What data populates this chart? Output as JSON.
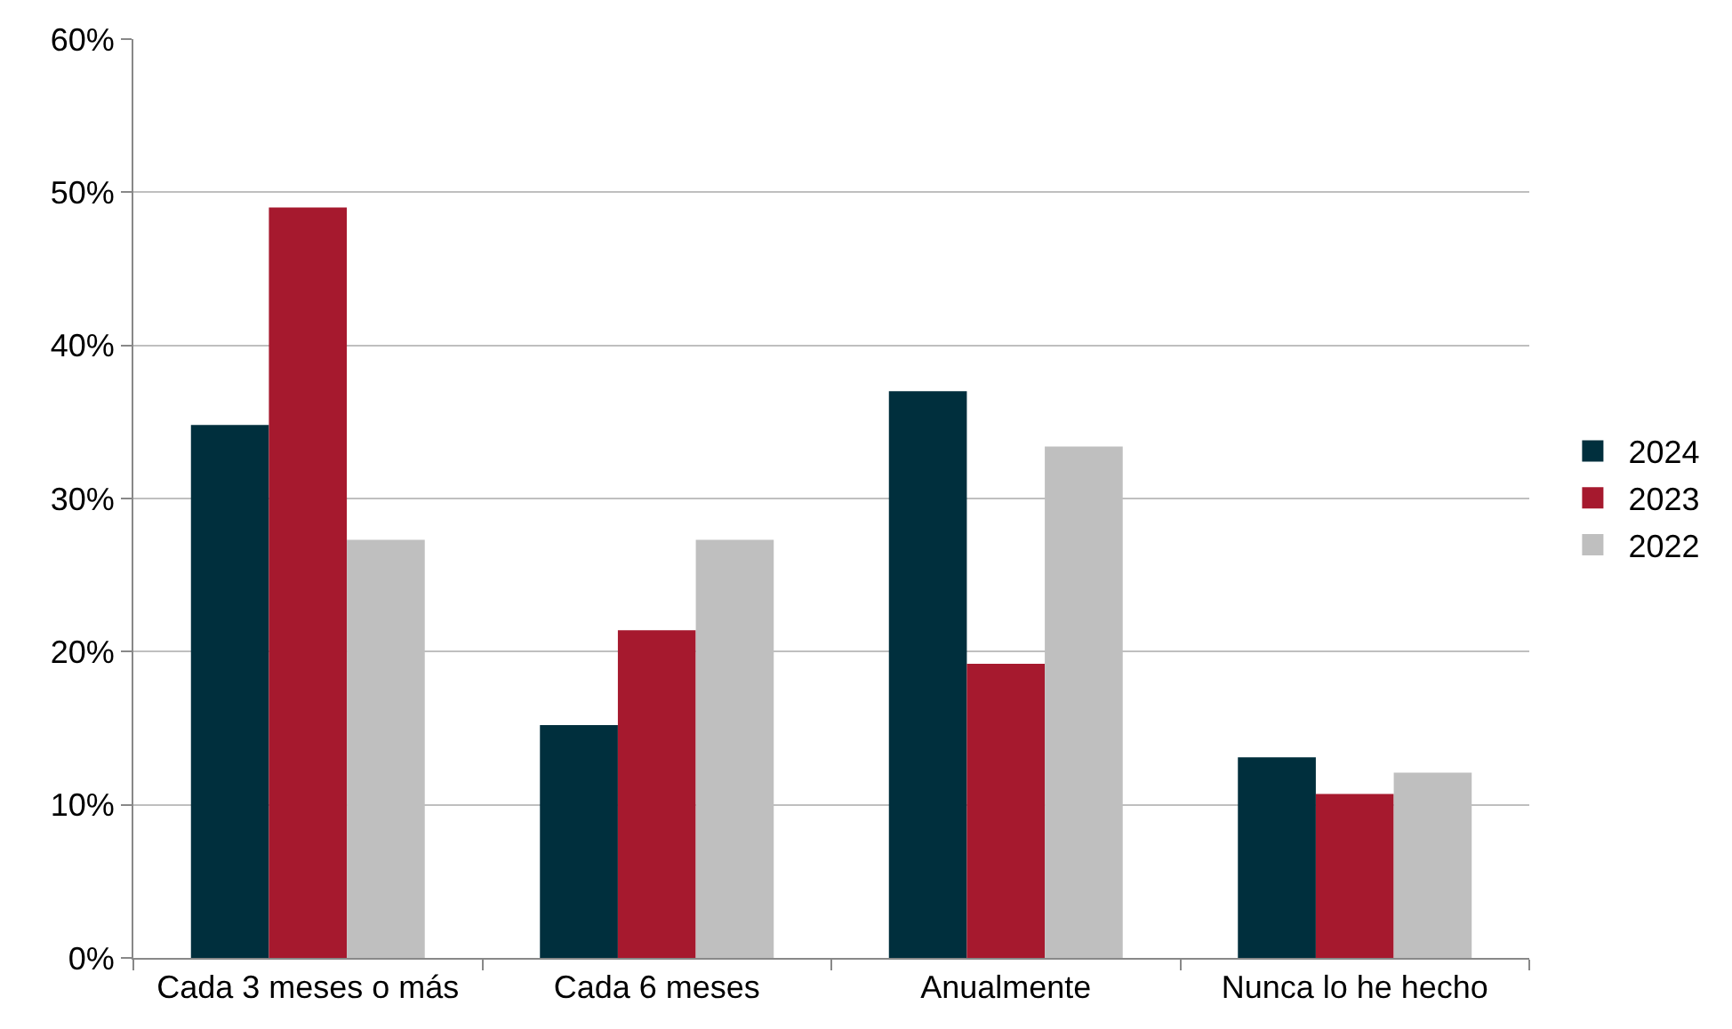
{
  "chart_data": {
    "type": "bar",
    "categories": [
      "Cada 3 meses o más",
      "Cada 6 meses",
      "Anualmente",
      "Nunca lo he hecho"
    ],
    "series": [
      {
        "name": "2024",
        "color": "#002f3d",
        "values": [
          34.8,
          15.2,
          37.0,
          13.1
        ]
      },
      {
        "name": "2023",
        "color": "#a6192e",
        "values": [
          49.0,
          21.4,
          19.2,
          10.7
        ]
      },
      {
        "name": "2022",
        "color": "#bfbfbf",
        "values": [
          27.3,
          27.3,
          33.4,
          12.1
        ]
      }
    ],
    "ylim": [
      0,
      60
    ],
    "yticks": [
      {
        "value": 0,
        "label": "0%"
      },
      {
        "value": 10,
        "label": "10%"
      },
      {
        "value": 20,
        "label": "20%"
      },
      {
        "value": 30,
        "label": "30%"
      },
      {
        "value": 40,
        "label": "40%"
      },
      {
        "value": 50,
        "label": "50%"
      },
      {
        "value": 60,
        "label": "60%"
      }
    ],
    "grid": "y",
    "legend": "right"
  }
}
